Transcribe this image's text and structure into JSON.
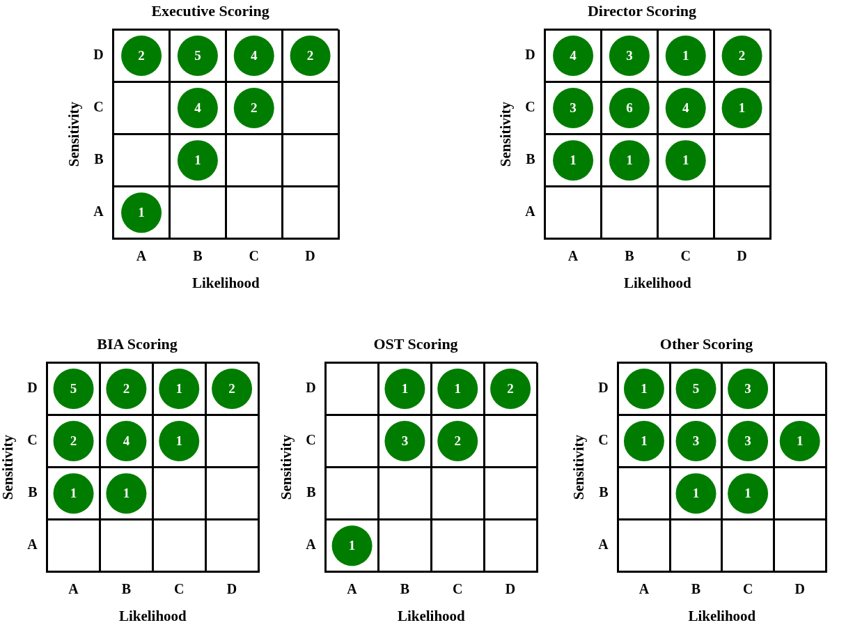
{
  "chart_data": [
    {
      "type": "heatmap",
      "data_labels": true,
      "title": "Executive Scoring",
      "xlabel": "Likelihood",
      "ylabel": "Sensitivity",
      "color": "#007d00",
      "categories": [
        "A",
        "B",
        "C",
        "D"
      ],
      "y_categories": [
        "D",
        "C",
        "B",
        "A"
      ],
      "cells": [
        [
          2,
          5,
          4,
          2
        ],
        [
          null,
          4,
          2,
          null
        ],
        [
          null,
          1,
          null,
          null
        ],
        [
          1,
          null,
          null,
          null
        ]
      ]
    },
    {
      "type": "heatmap",
      "data_labels": true,
      "title": "Director Scoring",
      "xlabel": "Likelihood",
      "ylabel": "Sensitivity",
      "color": "#007d00",
      "categories": [
        "A",
        "B",
        "C",
        "D"
      ],
      "y_categories": [
        "D",
        "C",
        "B",
        "A"
      ],
      "cells": [
        [
          4,
          3,
          1,
          2
        ],
        [
          3,
          6,
          4,
          1
        ],
        [
          1,
          1,
          1,
          null
        ],
        [
          null,
          null,
          null,
          null
        ]
      ]
    },
    {
      "type": "heatmap",
      "data_labels": true,
      "title": "BIA Scoring",
      "xlabel": "Likelihood",
      "ylabel": "Sensitivity",
      "color": "#007d00",
      "categories": [
        "A",
        "B",
        "C",
        "D"
      ],
      "y_categories": [
        "D",
        "C",
        "B",
        "A"
      ],
      "cells": [
        [
          5,
          2,
          1,
          2
        ],
        [
          2,
          4,
          1,
          null
        ],
        [
          1,
          1,
          null,
          null
        ],
        [
          null,
          null,
          null,
          null
        ]
      ]
    },
    {
      "type": "heatmap",
      "data_labels": true,
      "title": "OST Scoring",
      "xlabel": "Likelihood",
      "ylabel": "Sensitivity",
      "color": "#007d00",
      "categories": [
        "A",
        "B",
        "C",
        "D"
      ],
      "y_categories": [
        "D",
        "C",
        "B",
        "A"
      ],
      "cells": [
        [
          null,
          1,
          1,
          2
        ],
        [
          null,
          3,
          2,
          null
        ],
        [
          null,
          null,
          null,
          null
        ],
        [
          1,
          null,
          null,
          null
        ]
      ]
    },
    {
      "type": "heatmap",
      "data_labels": true,
      "title": "Other Scoring",
      "xlabel": "Likelihood",
      "ylabel": "Sensitivity",
      "color": "#007d00",
      "categories": [
        "A",
        "B",
        "C",
        "D"
      ],
      "y_categories": [
        "D",
        "C",
        "B",
        "A"
      ],
      "cells": [
        [
          1,
          5,
          3,
          null
        ],
        [
          1,
          3,
          3,
          1
        ],
        [
          null,
          1,
          1,
          null
        ],
        [
          null,
          null,
          null,
          null
        ]
      ]
    }
  ]
}
